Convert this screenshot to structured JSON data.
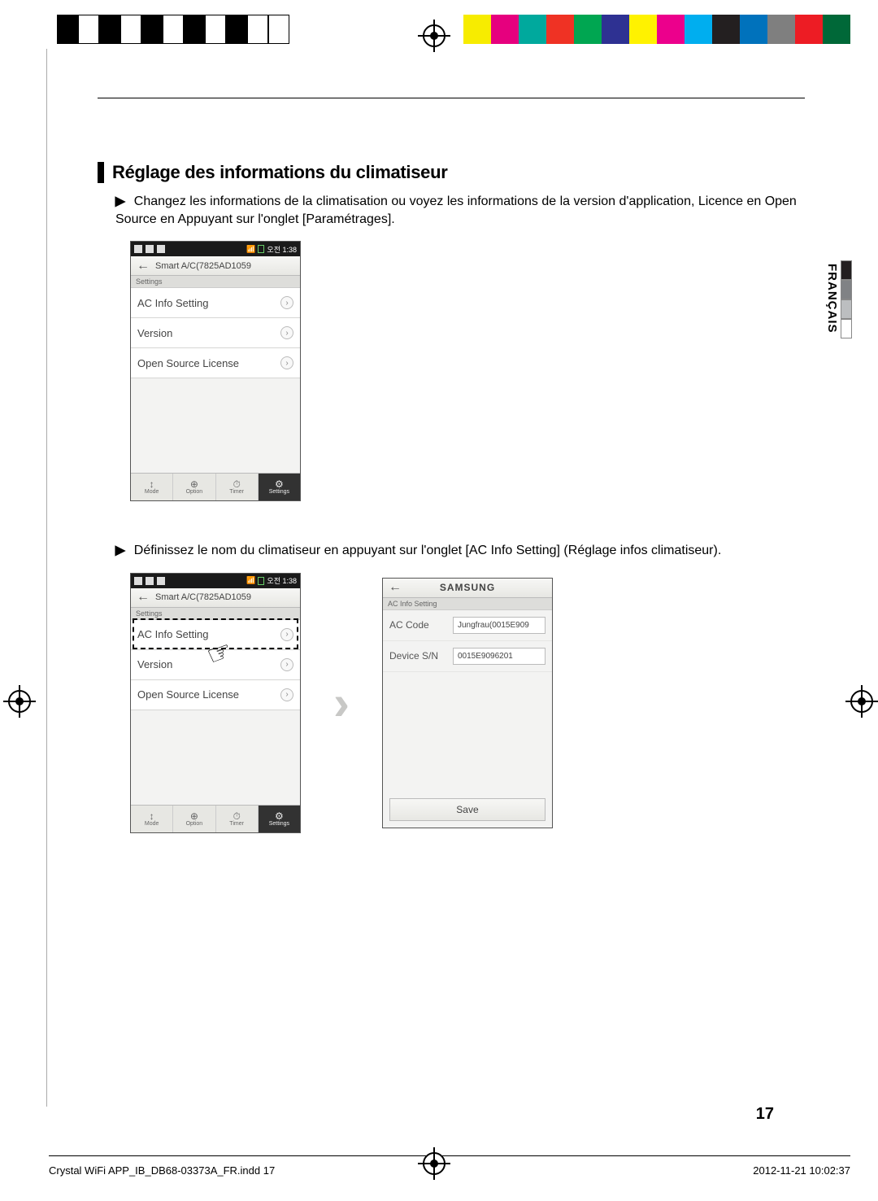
{
  "registration": {
    "black_bar_widths": [
      26,
      26,
      26,
      26,
      26,
      26,
      26,
      26,
      26,
      26,
      26
    ],
    "color_strip": [
      "#f7ec00",
      "#e6007e",
      "#00a99d",
      "#ef3224",
      "#00a651",
      "#2e3192",
      "#fff200",
      "#ec008c",
      "#00aeef",
      "#231f20",
      "#0072bc",
      "#7f7f7f",
      "#ed1c24",
      "#006838"
    ]
  },
  "language": {
    "label": "FRANÇAIS",
    "swatches": [
      "#231f20",
      "#808285",
      "#bcbec0",
      "#ffffff"
    ]
  },
  "section": {
    "title": "Réglage des informations du climatiseur",
    "para1_prefix": "▶",
    "para1": "Changez les informations de la climatisation ou voyez les informations de la version d'application, Licence en Open Source en Appuyant sur l'onglet [Paramétrages].",
    "para2_prefix": "▶",
    "para2": "Définissez le nom du climatiseur en appuyant sur l'onglet [AC Info Setting] (Réglage infos climatiseur)."
  },
  "phone_common": {
    "status_time": "오전 1:38",
    "title": "Smart A/C(7825AD1059",
    "sub_header": "Settings",
    "rows": [
      "AC Info Setting",
      "Version",
      "Open Source License"
    ],
    "nav": [
      {
        "icon": "↕",
        "label": "Mode"
      },
      {
        "icon": "⊕",
        "label": "Option"
      },
      {
        "icon": "⏱",
        "label": "Timer"
      },
      {
        "icon": "⚙",
        "label": "Settings"
      }
    ]
  },
  "phone_info": {
    "brand": "SAMSUNG",
    "sub_header": "AC Info Setting",
    "ac_code_label": "AC Code",
    "ac_code_value": "Jungfrau(0015E909",
    "device_sn_label": "Device S/N",
    "device_sn_value": "0015E9096201",
    "save_label": "Save"
  },
  "page_number": "17",
  "footer": {
    "left": "Crystal WiFi APP_IB_DB68-03373A_FR.indd   17",
    "right": "2012-11-21   10:02:37"
  }
}
